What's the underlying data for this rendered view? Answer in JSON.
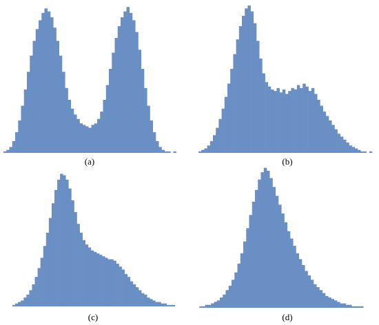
{
  "chart_data": [
    {
      "type": "histogram",
      "title": "(a)",
      "color": "#6a8fc4",
      "xlim": [
        0,
        60
      ],
      "ylim": [
        0,
        100
      ],
      "bins": [
        0,
        1,
        2,
        3,
        4,
        5,
        6,
        7,
        8,
        9,
        10,
        11,
        12,
        13,
        14,
        15,
        16,
        17,
        18,
        19,
        20,
        21,
        22,
        23,
        24,
        25,
        26,
        27,
        28,
        29,
        30,
        31,
        32,
        33,
        34,
        35,
        36,
        37,
        38,
        39,
        40,
        41,
        42,
        43,
        44,
        45,
        46,
        47,
        48,
        49,
        50,
        51,
        52,
        53,
        54,
        55,
        56,
        57,
        58,
        59,
        60
      ],
      "values": [
        1,
        2,
        4,
        8,
        14,
        22,
        32,
        43,
        55,
        66,
        76,
        84,
        90,
        95,
        98,
        96,
        92,
        85,
        76,
        66,
        55,
        44,
        36,
        30,
        26,
        23,
        20,
        19,
        18,
        17,
        19,
        20,
        23,
        28,
        36,
        46,
        57,
        68,
        78,
        86,
        92,
        96,
        99,
        95,
        90,
        82,
        70,
        57,
        44,
        32,
        22,
        14,
        8,
        4,
        2,
        1,
        1,
        0,
        1,
        0
      ]
    },
    {
      "type": "histogram",
      "title": "(b)",
      "color": "#6a8fc4",
      "xlim": [
        0,
        60
      ],
      "ylim": [
        0,
        100
      ],
      "bins": [
        0,
        1,
        2,
        3,
        4,
        5,
        6,
        7,
        8,
        9,
        10,
        11,
        12,
        13,
        14,
        15,
        16,
        17,
        18,
        19,
        20,
        21,
        22,
        23,
        24,
        25,
        26,
        27,
        28,
        29,
        30,
        31,
        32,
        33,
        34,
        35,
        36,
        37,
        38,
        39,
        40,
        41,
        42,
        43,
        44,
        45,
        46,
        47,
        48,
        49,
        50,
        51,
        52,
        53,
        54,
        55,
        56,
        57,
        58,
        59,
        60
      ],
      "values": [
        1,
        2,
        3,
        5,
        8,
        12,
        17,
        23,
        30,
        38,
        47,
        57,
        67,
        77,
        86,
        93,
        98,
        100,
        96,
        88,
        76,
        64,
        54,
        48,
        45,
        43,
        42,
        44,
        41,
        43,
        40,
        42,
        44,
        43,
        46,
        44,
        47,
        45,
        42,
        44,
        40,
        36,
        32,
        28,
        25,
        22,
        19,
        16,
        13,
        11,
        9,
        7,
        5,
        4,
        3,
        2,
        1,
        1,
        0,
        1
      ]
    },
    {
      "type": "histogram",
      "title": "(c)",
      "color": "#6a8fc4",
      "xlim": [
        0,
        60
      ],
      "ylim": [
        0,
        100
      ],
      "bins": [
        0,
        1,
        2,
        3,
        4,
        5,
        6,
        7,
        8,
        9,
        10,
        11,
        12,
        13,
        14,
        15,
        16,
        17,
        18,
        19,
        20,
        21,
        22,
        23,
        24,
        25,
        26,
        27,
        28,
        29,
        30,
        31,
        32,
        33,
        34,
        35,
        36,
        37,
        38,
        39,
        40,
        41,
        42,
        43,
        44,
        45,
        46,
        47,
        48,
        49,
        50,
        51,
        52,
        53,
        54,
        55,
        56,
        57,
        58,
        59,
        60
      ],
      "values": [
        1,
        2,
        3,
        4,
        6,
        8,
        11,
        15,
        20,
        26,
        33,
        41,
        50,
        60,
        70,
        79,
        86,
        90,
        89,
        86,
        80,
        72,
        64,
        56,
        50,
        45,
        42,
        40,
        38,
        37,
        36,
        35,
        34,
        33,
        32,
        32,
        31,
        29,
        27,
        25,
        22,
        20,
        17,
        15,
        13,
        11,
        9,
        8,
        6,
        5,
        4,
        3,
        3,
        2,
        2,
        1,
        1,
        1,
        0,
        0
      ]
    },
    {
      "type": "histogram",
      "title": "(d)",
      "color": "#6a8fc4",
      "xlim": [
        0,
        60
      ],
      "ylim": [
        0,
        100
      ],
      "bins": [
        0,
        1,
        2,
        3,
        4,
        5,
        6,
        7,
        8,
        9,
        10,
        11,
        12,
        13,
        14,
        15,
        16,
        17,
        18,
        19,
        20,
        21,
        22,
        23,
        24,
        25,
        26,
        27,
        28,
        29,
        30,
        31,
        32,
        33,
        34,
        35,
        36,
        37,
        38,
        39,
        40,
        41,
        42,
        43,
        44,
        45,
        46,
        47,
        48,
        49,
        50,
        51,
        52,
        53,
        54,
        55,
        56,
        57,
        58,
        59,
        60
      ],
      "values": [
        0,
        1,
        1,
        2,
        2,
        3,
        4,
        5,
        7,
        9,
        12,
        15,
        19,
        24,
        30,
        37,
        45,
        54,
        63,
        72,
        80,
        87,
        92,
        95,
        93,
        88,
        82,
        76,
        70,
        64,
        58,
        52,
        47,
        42,
        37,
        33,
        29,
        25,
        22,
        19,
        16,
        14,
        12,
        10,
        8,
        7,
        6,
        5,
        4,
        3,
        3,
        2,
        2,
        1,
        1,
        1,
        1,
        0,
        0,
        0
      ]
    }
  ]
}
